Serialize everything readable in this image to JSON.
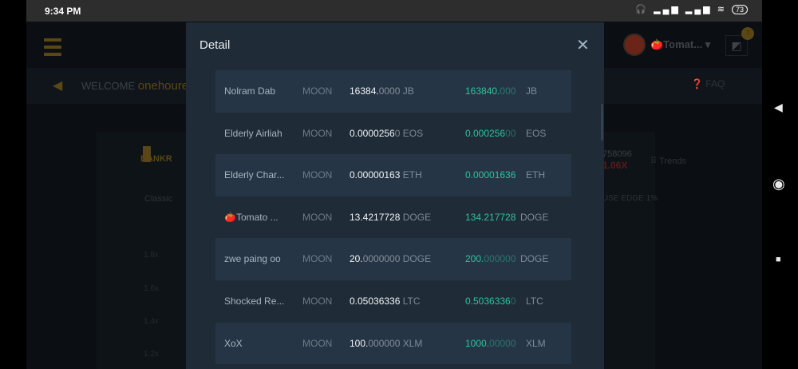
{
  "status_bar": {
    "time": "9:34 PM",
    "icons": "🎧 ▂▄▆ ▂▄▆ ≋",
    "battery": "73"
  },
  "background": {
    "welcome_label": "WELCOME",
    "welcome_user": "onehoures",
    "bankroll": "BANKR",
    "classic_tab": "Classic",
    "y_ticks": [
      "1.8x",
      "1.6x",
      "1.4x",
      "1.2x"
    ],
    "user_name": "🍅Tomat...",
    "notification_count": "7",
    "faq": "FAQ",
    "number": "758096",
    "multiplier": "1.06X",
    "trends": "Trends",
    "house_edge": "USE EDGE 1%"
  },
  "modal": {
    "title": "Detail",
    "close": "✕",
    "rows": [
      {
        "name": "Nolram Dab",
        "game": "MOON",
        "amount": "16384.",
        "amount_dim": "0000",
        "currency": "JB",
        "payout": "163840.",
        "payout_dim": "000",
        "payout_currency": "JB"
      },
      {
        "name": "Elderly Airliah",
        "game": "MOON",
        "amount": "0.0000256",
        "amount_dim": "0",
        "currency": "EOS",
        "payout": "0.000256",
        "payout_dim": "00",
        "payout_currency": "EOS"
      },
      {
        "name": "Elderly Char...",
        "game": "MOON",
        "amount": "0.00000163",
        "amount_dim": "",
        "currency": "ETH",
        "payout": "0.00001636",
        "payout_dim": "",
        "payout_currency": "ETH"
      },
      {
        "name": "🍅Tomato ...",
        "game": "MOON",
        "amount": "13.4217728",
        "amount_dim": "",
        "currency": "DOGE",
        "payout": "134.217728",
        "payout_dim": "",
        "payout_currency": "DOGE"
      },
      {
        "name": "zwe paing oo",
        "game": "MOON",
        "amount": "20.",
        "amount_dim": "0000000",
        "currency": "DOGE",
        "payout": "200.",
        "payout_dim": "000000",
        "payout_currency": "DOGE"
      },
      {
        "name": "Shocked Re...",
        "game": "MOON",
        "amount": "0.05036336",
        "amount_dim": "",
        "currency": "LTC",
        "payout": "0.5036336",
        "payout_dim": "0",
        "payout_currency": "LTC"
      },
      {
        "name": "XoX",
        "game": "MOON",
        "amount": "100.",
        "amount_dim": "000000",
        "currency": "XLM",
        "payout": "1000.",
        "payout_dim": "00000",
        "payout_currency": "XLM"
      }
    ]
  },
  "nav": {
    "back": "◀",
    "home": "◉",
    "recents": "■"
  },
  "colors": {
    "accent": "#2fc29a",
    "modal_bg": "#1f2b37",
    "row_stripe": "#263545"
  }
}
